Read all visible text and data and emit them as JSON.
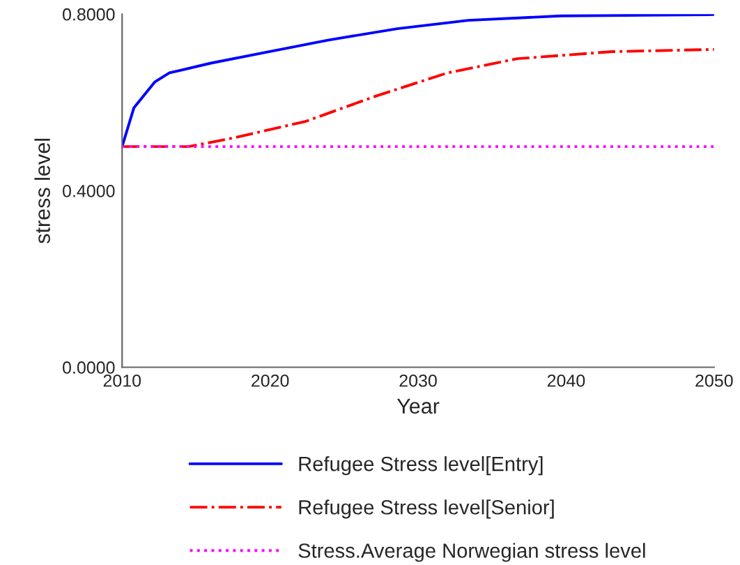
{
  "chart_data": {
    "type": "line",
    "xlabel": "Year",
    "ylabel": "stress level",
    "xlim": [
      2010,
      2050
    ],
    "xticks": [
      2010,
      2020,
      2030,
      2040,
      2050
    ],
    "ylim": [
      0,
      0.8
    ],
    "yticks": [
      {
        "value": 0,
        "label": "0.0000"
      },
      {
        "value": 0.4,
        "label": "0.4000"
      },
      {
        "value": 0.8,
        "label": "0.8000"
      }
    ],
    "grid": false,
    "legend": "bottom",
    "marker": "none",
    "series": [
      {
        "name": "Refugee Stress level[Entry]",
        "color": "#0000ff",
        "line_style": "solid",
        "x": [
          2010,
          2010.8,
          2012.2,
          2013.2,
          2016,
          2019.2,
          2023.9,
          2028.6,
          2033.4,
          2039.7,
          2050
        ],
        "values": [
          0.5,
          0.588,
          0.646,
          0.667,
          0.689,
          0.71,
          0.741,
          0.767,
          0.786,
          0.796,
          0.799
        ]
      },
      {
        "name": "Refugee Stress level[Senior]",
        "color": "#ff0000",
        "line_style": "dashdot",
        "x": [
          2010,
          2014.5,
          2017.6,
          2022.4,
          2027.2,
          2032,
          2036.7,
          2043.1,
          2050
        ],
        "values": [
          0.5,
          0.5,
          0.52,
          0.557,
          0.615,
          0.667,
          0.699,
          0.715,
          0.72
        ]
      },
      {
        "name": "Stress.Average Norwegian stress level",
        "color": "#ff00ff",
        "line_style": "dotted",
        "x": [
          2010,
          2050
        ],
        "values": [
          0.5,
          0.5
        ]
      }
    ]
  }
}
